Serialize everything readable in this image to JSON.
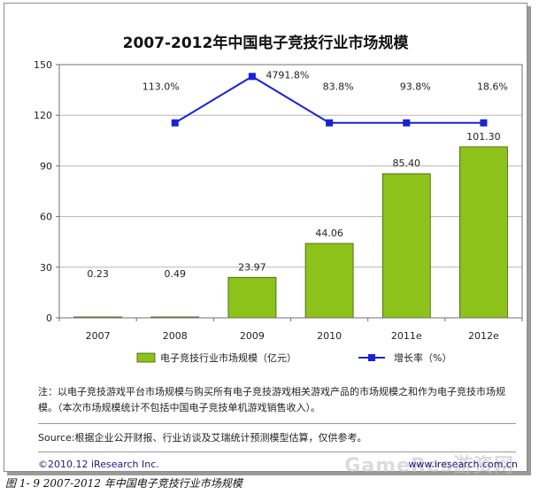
{
  "chart_data": {
    "type": "bar",
    "title": "2007-2012年中国电子竞技行业市场规模",
    "categories": [
      "2007",
      "2008",
      "2009",
      "2010",
      "2011e",
      "2012e"
    ],
    "series": [
      {
        "name": "电子竞技行业市场规模（亿元）",
        "type": "bar",
        "values": [
          0.23,
          0.49,
          23.97,
          44.06,
          85.4,
          101.3
        ],
        "labels": [
          "0.23",
          "0.49",
          "23.97",
          "44.06",
          "85.40",
          "101.30"
        ],
        "color": "#8cc21a"
      },
      {
        "name": "增长率（%）",
        "type": "line",
        "display_values": [
          null,
          113.0,
          4791.8,
          83.8,
          93.8,
          18.6
        ],
        "labels": [
          "",
          "113.0%",
          "4791.8%",
          "83.8%",
          "93.8%",
          "18.6%"
        ],
        "color": "#1a22d6"
      }
    ],
    "ylim": [
      0,
      150
    ],
    "yticks": [
      "0",
      "30",
      "60",
      "90",
      "120",
      "150"
    ],
    "legend_position": "bottom"
  },
  "notes": {
    "note": "注：以电子竞技游戏平台市场规模与购买所有电子竞技游戏相关游戏产品的市场规模之和作为电子竞技市场规模。（本次市场规模统计不包括中国电子竞技单机游戏销售收入）。",
    "source": "Source:根据企业公开财报、行业访谈及艾瑞统计预测模型估算，仅供参考。",
    "copyright": "©2010.12 iResearch Inc.",
    "website": "www.iresearch.com.cn",
    "watermark": "GameRes游资网"
  },
  "caption": "图 1- 9 2007-2012 年中国电子竞技行业市场规模"
}
